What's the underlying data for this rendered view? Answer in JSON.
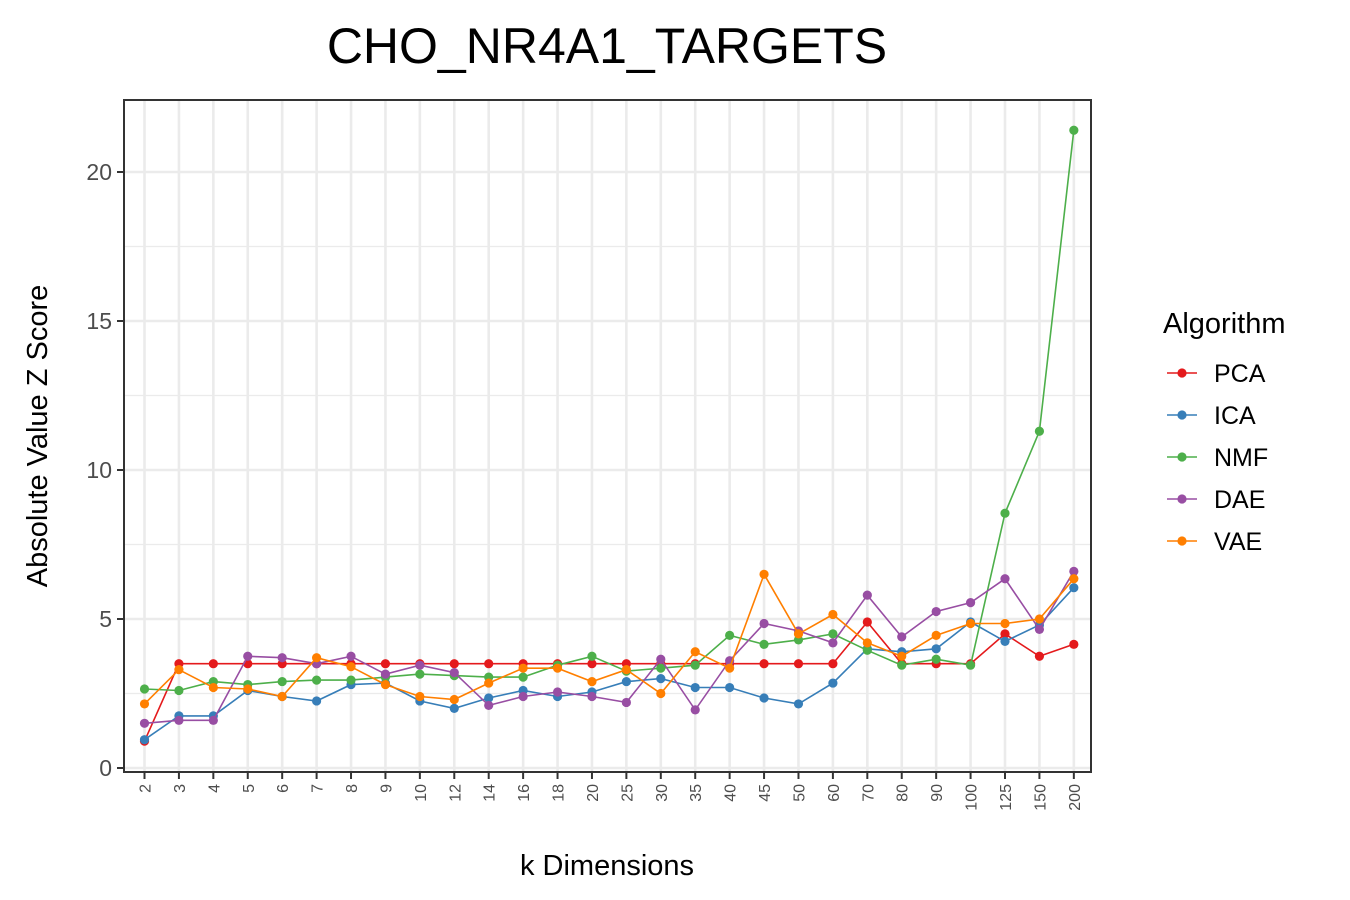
{
  "chart_data": {
    "type": "line",
    "title": "CHO_NR4A1_TARGETS",
    "xlabel": "k Dimensions",
    "ylabel": "Absolute Value Z Score",
    "categories": [
      "2",
      "3",
      "4",
      "5",
      "6",
      "7",
      "8",
      "9",
      "10",
      "12",
      "14",
      "16",
      "18",
      "20",
      "25",
      "30",
      "35",
      "40",
      "45",
      "50",
      "60",
      "70",
      "80",
      "90",
      "100",
      "125",
      "150",
      "200"
    ],
    "yticks": [
      "0",
      "5",
      "10",
      "15",
      "20"
    ],
    "ylim": [
      0,
      22.5
    ],
    "grid": true,
    "legend": {
      "title": "Algorithm",
      "position": "right"
    },
    "series": [
      {
        "name": "PCA",
        "color": "#e41a1c",
        "values": [
          0.9,
          3.5,
          3.5,
          3.5,
          3.5,
          3.5,
          3.5,
          3.5,
          3.5,
          3.5,
          3.5,
          3.5,
          3.5,
          3.5,
          3.5,
          3.5,
          3.5,
          3.5,
          3.5,
          3.5,
          3.5,
          4.9,
          3.5,
          3.5,
          3.5,
          4.5,
          3.75,
          4.15
        ]
      },
      {
        "name": "ICA",
        "color": "#377eb8",
        "values": [
          0.95,
          1.75,
          1.75,
          2.6,
          2.4,
          2.25,
          2.8,
          2.85,
          2.25,
          2.0,
          2.35,
          2.6,
          2.4,
          2.55,
          2.9,
          3.0,
          2.7,
          2.7,
          2.35,
          2.15,
          2.85,
          4.0,
          3.9,
          4.0,
          4.9,
          4.25,
          4.8,
          6.05
        ]
      },
      {
        "name": "NMF",
        "color": "#4daf4a",
        "values": [
          2.65,
          2.6,
          2.9,
          2.8,
          2.9,
          2.95,
          2.95,
          3.05,
          3.15,
          3.1,
          3.05,
          3.05,
          3.45,
          3.75,
          3.25,
          3.35,
          3.45,
          4.45,
          4.15,
          4.3,
          4.5,
          3.95,
          3.45,
          3.65,
          3.45,
          8.55,
          11.3,
          21.4
        ]
      },
      {
        "name": "DAE",
        "color": "#984ea3",
        "values": [
          1.5,
          1.6,
          1.6,
          3.75,
          3.7,
          3.5,
          3.75,
          3.15,
          3.45,
          3.2,
          2.1,
          2.4,
          2.55,
          2.4,
          2.2,
          3.65,
          1.95,
          3.6,
          4.85,
          4.6,
          4.2,
          5.8,
          4.4,
          5.25,
          5.55,
          6.35,
          4.65,
          6.6
        ]
      },
      {
        "name": "VAE",
        "color": "#ff7f00",
        "values": [
          2.15,
          3.3,
          2.7,
          2.65,
          2.4,
          3.7,
          3.4,
          2.8,
          2.4,
          2.3,
          2.85,
          3.35,
          3.35,
          2.9,
          3.3,
          2.5,
          3.9,
          3.35,
          6.5,
          4.5,
          5.15,
          4.2,
          3.75,
          4.45,
          4.85,
          4.85,
          5.0,
          6.35
        ]
      }
    ]
  }
}
